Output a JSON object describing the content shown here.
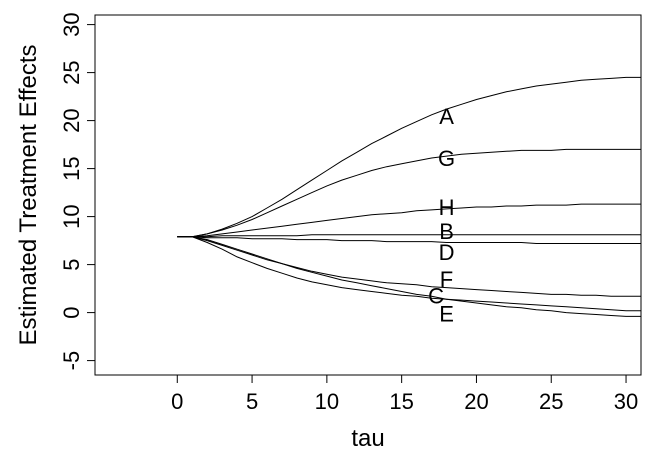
{
  "chart_data": {
    "type": "line",
    "xlabel": "tau",
    "ylabel": "Estimated Treatment Effects",
    "xlim": [
      -5.5,
      31
    ],
    "ylim": [
      -6.5,
      31
    ],
    "xticks": [
      0,
      5,
      10,
      15,
      20,
      25,
      30
    ],
    "yticks": [
      -5,
      0,
      5,
      10,
      15,
      20,
      25,
      30
    ],
    "grid": false,
    "legend": "none",
    "x": [
      0,
      1,
      2,
      3,
      4,
      5,
      6,
      7,
      8,
      9,
      10,
      11,
      12,
      13,
      14,
      15,
      16,
      17,
      18,
      19,
      20,
      21,
      22,
      23,
      24,
      25,
      26,
      27,
      28,
      29,
      30,
      31
    ],
    "series": [
      {
        "name": "A",
        "label_at": [
          18,
          20.5
        ],
        "values": [
          7.9,
          7.9,
          8.2,
          8.7,
          9.3,
          10.0,
          10.9,
          11.8,
          12.8,
          13.8,
          14.8,
          15.8,
          16.7,
          17.6,
          18.4,
          19.2,
          19.9,
          20.6,
          21.2,
          21.7,
          22.2,
          22.6,
          23.0,
          23.3,
          23.6,
          23.8,
          24.0,
          24.2,
          24.3,
          24.4,
          24.5,
          24.5
        ]
      },
      {
        "name": "G",
        "label_at": [
          18,
          16.1
        ],
        "values": [
          7.9,
          7.9,
          8.2,
          8.6,
          9.1,
          9.7,
          10.4,
          11.1,
          11.8,
          12.5,
          13.2,
          13.8,
          14.3,
          14.8,
          15.2,
          15.5,
          15.8,
          16.1,
          16.3,
          16.5,
          16.6,
          16.7,
          16.8,
          16.9,
          16.9,
          16.9,
          17.0,
          17.0,
          17.0,
          17.0,
          17.0,
          17.0
        ]
      },
      {
        "name": "H",
        "label_at": [
          18,
          11.0
        ],
        "values": [
          7.9,
          7.9,
          8.0,
          8.2,
          8.4,
          8.6,
          8.8,
          9.0,
          9.2,
          9.4,
          9.6,
          9.8,
          10.0,
          10.2,
          10.3,
          10.4,
          10.6,
          10.7,
          10.8,
          10.9,
          11.0,
          11.0,
          11.1,
          11.1,
          11.2,
          11.2,
          11.2,
          11.3,
          11.3,
          11.3,
          11.3,
          11.3
        ]
      },
      {
        "name": "B",
        "label_at": [
          18,
          8.5
        ],
        "values": [
          7.9,
          7.9,
          7.9,
          8.0,
          8.0,
          8.0,
          8.0,
          8.0,
          8.0,
          8.1,
          8.1,
          8.1,
          8.1,
          8.1,
          8.1,
          8.1,
          8.1,
          8.1,
          8.1,
          8.1,
          8.1,
          8.1,
          8.1,
          8.1,
          8.1,
          8.1,
          8.1,
          8.1,
          8.1,
          8.1,
          8.1,
          8.1
        ]
      },
      {
        "name": "D",
        "label_at": [
          18,
          6.3
        ],
        "values": [
          7.9,
          7.9,
          7.8,
          7.8,
          7.8,
          7.7,
          7.7,
          7.7,
          7.6,
          7.6,
          7.6,
          7.5,
          7.5,
          7.5,
          7.4,
          7.4,
          7.4,
          7.4,
          7.3,
          7.3,
          7.3,
          7.3,
          7.3,
          7.3,
          7.2,
          7.2,
          7.2,
          7.2,
          7.2,
          7.2,
          7.2,
          7.2
        ]
      },
      {
        "name": "F",
        "label_at": [
          18,
          3.5
        ],
        "values": [
          7.9,
          7.9,
          7.6,
          7.1,
          6.6,
          6.1,
          5.6,
          5.1,
          4.7,
          4.3,
          4.0,
          3.7,
          3.5,
          3.3,
          3.1,
          3.0,
          2.9,
          2.7,
          2.6,
          2.5,
          2.4,
          2.3,
          2.2,
          2.1,
          2.0,
          1.9,
          1.9,
          1.8,
          1.8,
          1.7,
          1.7,
          1.7
        ]
      },
      {
        "name": "C",
        "label_at": [
          17.3,
          1.8
        ],
        "values": [
          7.9,
          7.9,
          7.5,
          7.0,
          6.5,
          6.0,
          5.5,
          5.1,
          4.6,
          4.2,
          3.8,
          3.4,
          3.1,
          2.8,
          2.5,
          2.2,
          1.9,
          1.7,
          1.4,
          1.2,
          1.0,
          0.8,
          0.6,
          0.5,
          0.3,
          0.2,
          0.0,
          -0.1,
          -0.2,
          -0.3,
          -0.4,
          -0.4
        ]
      },
      {
        "name": "E",
        "label_at": [
          18,
          -0.1
        ],
        "values": [
          7.9,
          7.9,
          7.3,
          6.6,
          5.8,
          5.2,
          4.6,
          4.1,
          3.6,
          3.2,
          2.9,
          2.6,
          2.4,
          2.2,
          2.0,
          1.8,
          1.7,
          1.5,
          1.4,
          1.3,
          1.2,
          1.1,
          1.0,
          0.9,
          0.8,
          0.7,
          0.6,
          0.5,
          0.4,
          0.3,
          0.2,
          0.2
        ]
      }
    ]
  }
}
